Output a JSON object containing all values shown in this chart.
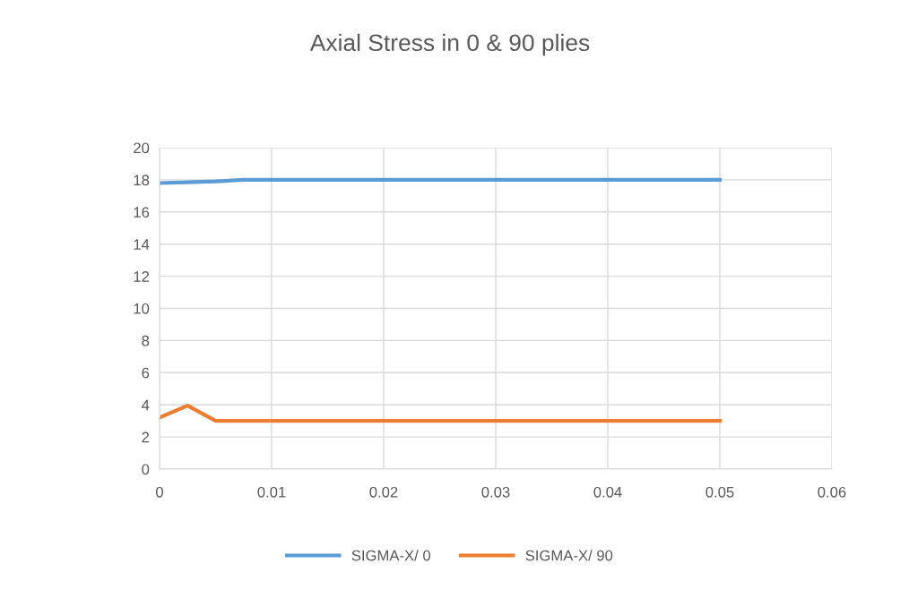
{
  "chart_data": {
    "type": "line",
    "title": "Axial Stress in 0 & 90 plies",
    "series": [
      {
        "name": "SIGMA-X/ 0",
        "color": "#5b9bd5",
        "x": [
          0,
          0.0025,
          0.005,
          0.0075,
          0.01,
          0.02,
          0.03,
          0.04,
          0.05
        ],
        "values": [
          17.8,
          17.85,
          17.9,
          18.0,
          18.0,
          18.0,
          18.0,
          18.0,
          18.0
        ]
      },
      {
        "name": "SIGMA-X/ 90",
        "color": "#ed7d31",
        "x": [
          0,
          0.0025,
          0.005,
          0.0075,
          0.01,
          0.02,
          0.03,
          0.04,
          0.05
        ],
        "values": [
          3.2,
          3.95,
          3.0,
          3.0,
          3.0,
          3.0,
          3.0,
          3.0,
          3.0
        ]
      }
    ],
    "xlim": [
      0,
      0.06
    ],
    "xticks": [
      0,
      0.01,
      0.02,
      0.03,
      0.04,
      0.05,
      0.06
    ],
    "ylim": [
      0,
      20
    ],
    "yticks": [
      0,
      2,
      4,
      6,
      8,
      10,
      12,
      14,
      16,
      18,
      20
    ],
    "grid": true,
    "legend": "bottom",
    "marker": "none",
    "line_style": "solid"
  }
}
